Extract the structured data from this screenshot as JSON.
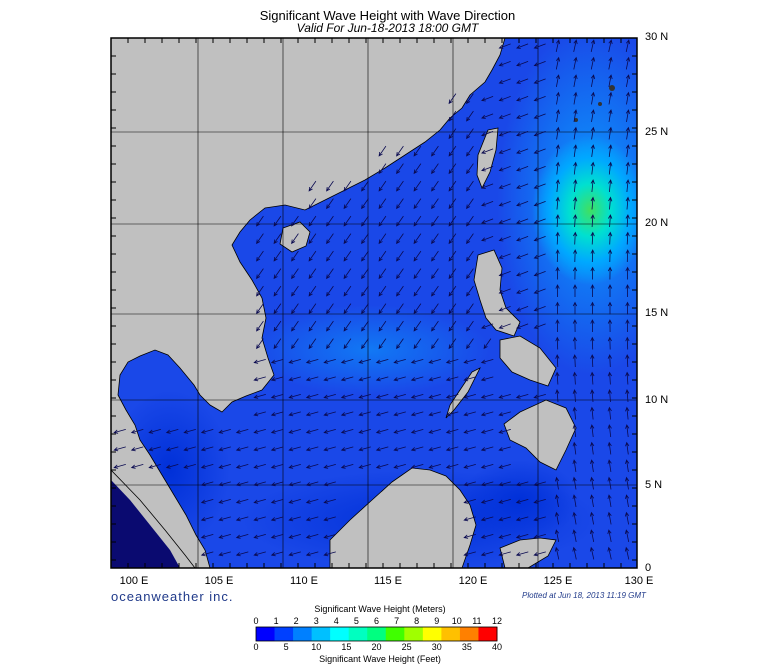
{
  "title": "Significant Wave Height with Wave Direction",
  "subtitle": "Valid For Jun-18-2013 18:00 GMT",
  "map": {
    "region": "South China Sea / Philippine Sea",
    "lat_labels": [
      "30 N",
      "25 N",
      "20 N",
      "15 N",
      "10 N",
      "5 N",
      "0"
    ],
    "lon_labels": [
      "100 E",
      "105 E",
      "110 E",
      "115 E",
      "120 E",
      "125 E",
      "130 E"
    ],
    "colors": {
      "land": "#c0c0c0",
      "sea": "#1a3fe0",
      "frame": "#000000"
    }
  },
  "branding": "oceanweather inc.",
  "plotted": "Plotted at Jun 18, 2013 11:19 GMT",
  "colorbar": {
    "meters_title": "Significant Wave Height (Meters)",
    "feet_title": "Significant Wave Height (Feet)",
    "meters_ticks": [
      "0",
      "1",
      "2",
      "3",
      "4",
      "5",
      "6",
      "7",
      "8",
      "9",
      "10",
      "11",
      "12"
    ],
    "feet_ticks": [
      "0",
      "5",
      "10",
      "15",
      "20",
      "25",
      "30",
      "35",
      "40"
    ],
    "colors": [
      "#0000ff",
      "#0040ff",
      "#0080ff",
      "#00c0ff",
      "#00ffff",
      "#00ffc0",
      "#00ff80",
      "#40ff00",
      "#a0ff00",
      "#ffff00",
      "#ffc000",
      "#ff8000",
      "#ff0000"
    ]
  }
}
